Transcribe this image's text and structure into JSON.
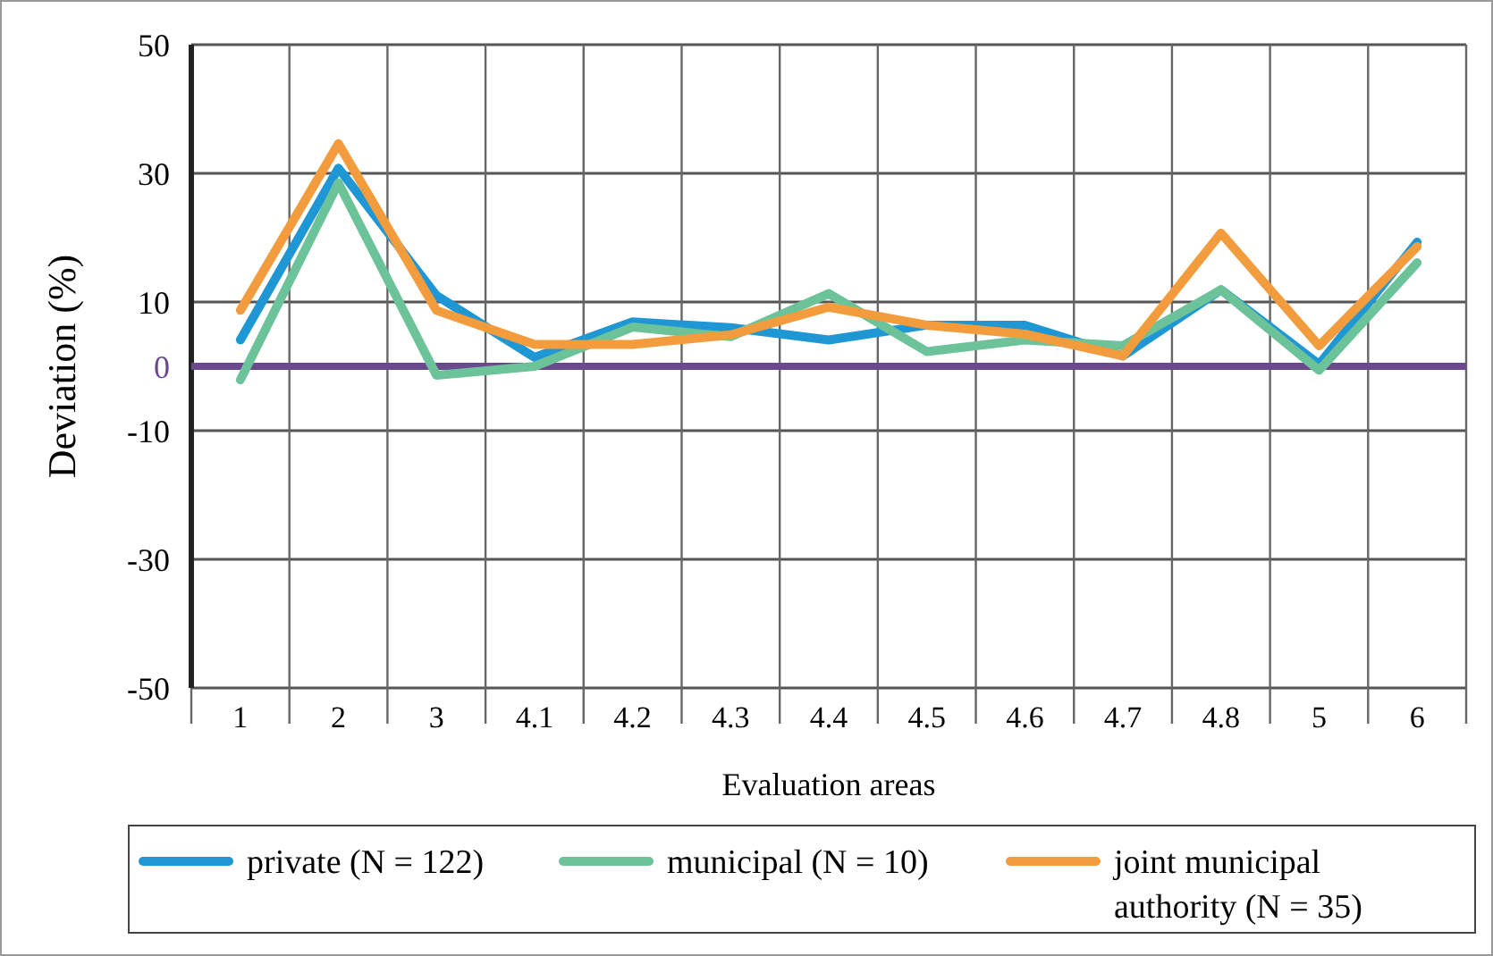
{
  "chart_data": {
    "type": "line",
    "xlabel": "Evaluation areas",
    "ylabel": "Deviation (%)",
    "categories": [
      "1",
      "2",
      "3",
      "4.1",
      "4.2",
      "4.3",
      "4.4",
      "4.5",
      "4.6",
      "4.7",
      "4.8",
      "5",
      "6"
    ],
    "series": [
      {
        "name": "private (N = 122)",
        "color": "#1f97d4",
        "values": [
          4.1,
          30.8,
          11,
          1.4,
          6.9,
          6.0,
          4.1,
          6.4,
          6.4,
          1.6,
          11.9,
          0.3,
          19.3
        ]
      },
      {
        "name": "municipal (N = 10)",
        "color": "#6cc39a",
        "values": [
          -2.1,
          28.5,
          -1.4,
          0,
          6.1,
          4.6,
          11.3,
          2.3,
          4.1,
          3.2,
          11.9,
          -0.6,
          16.1
        ]
      },
      {
        "name": "joint municipal authority (N = 35)",
        "color": "#f39c3e",
        "values": [
          8.7,
          34.6,
          8.7,
          3.4,
          3.4,
          4.9,
          9.2,
          6.4,
          5.0,
          1.6,
          20.7,
          3.2,
          18.6
        ]
      }
    ],
    "ylim": [
      -50,
      50
    ],
    "yticks": [
      -50,
      -30,
      -10,
      10,
      30,
      50
    ],
    "grid": true,
    "legend": "bottom",
    "marker": "none",
    "line_style": "solid",
    "ref_lines": [
      {
        "axis": "y",
        "value": 0,
        "label": "0",
        "color": "#6a4a8c"
      }
    ]
  }
}
